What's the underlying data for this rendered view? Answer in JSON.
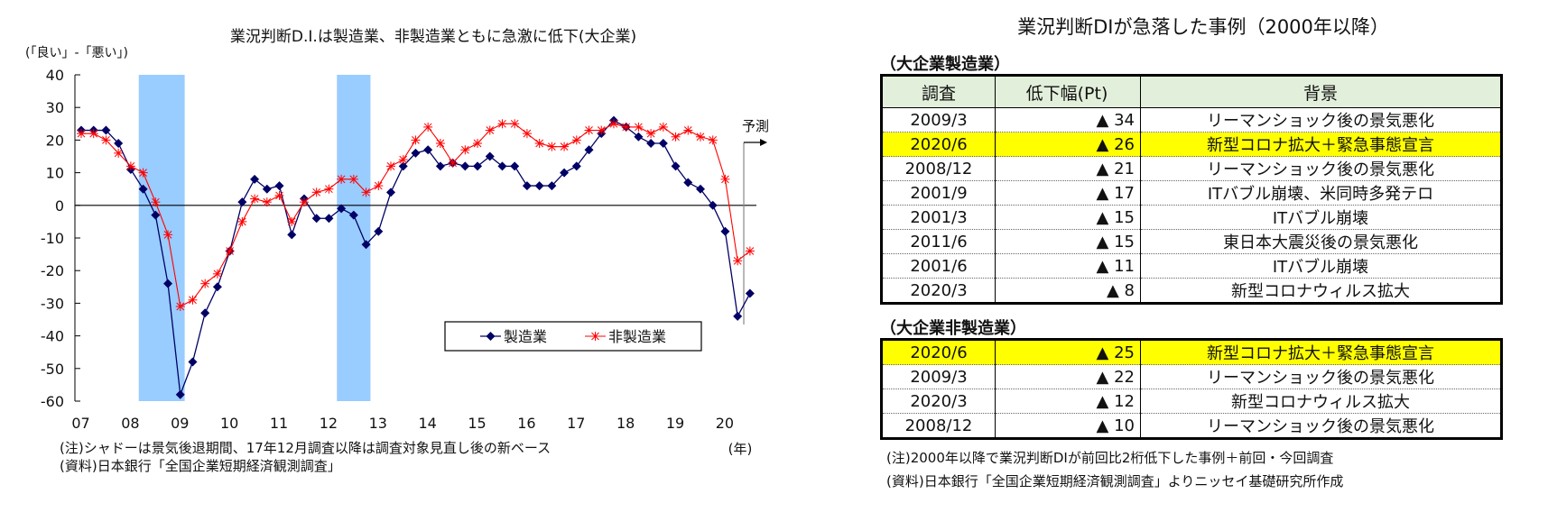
{
  "chart_data": {
    "type": "line",
    "title": "業況判断D.I.は製造業、非製造業ともに急激に低下(大企業)",
    "ylabel": "(「良い」-「悪い」)",
    "xlabel": "(年)",
    "ylim": [
      -60,
      40
    ],
    "yticks": [
      40,
      30,
      20,
      10,
      0,
      -10,
      -20,
      -30,
      -40,
      -50,
      -60
    ],
    "xtick_labels": [
      "07",
      "08",
      "09",
      "10",
      "11",
      "12",
      "13",
      "14",
      "15",
      "16",
      "17",
      "18",
      "19",
      "20"
    ],
    "x_start": "2007/3",
    "x_frequency": "quarterly",
    "forecast_label": "予測",
    "recession_shading": [
      {
        "from": "2008/2",
        "to": "2009/1"
      },
      {
        "from": "2012/2",
        "to": "2012/4"
      }
    ],
    "legend": {
      "position": "bottom-right",
      "entries": [
        "製造業",
        "非製造業"
      ]
    },
    "series": [
      {
        "name": "製造業",
        "color": "#000066",
        "marker": "diamond",
        "values": [
          23,
          23,
          23,
          19,
          11,
          5,
          -3,
          -24,
          -58,
          -48,
          -33,
          -25,
          -14,
          1,
          8,
          5,
          6,
          -9,
          2,
          -4,
          -4,
          -1,
          -3,
          -12,
          -8,
          4,
          12,
          16,
          17,
          12,
          13,
          12,
          12,
          15,
          12,
          12,
          6,
          6,
          6,
          10,
          12,
          17,
          22,
          26,
          24,
          21,
          19,
          19,
          12,
          7,
          5,
          0,
          -8,
          -34,
          -27
        ]
      },
      {
        "name": "非製造業",
        "color": "#ff0000",
        "marker": "asterisk",
        "values": [
          22,
          22,
          20,
          16,
          12,
          10,
          1,
          -9,
          -31,
          -29,
          -24,
          -21,
          -14,
          -5,
          2,
          1,
          3,
          -5,
          1,
          4,
          5,
          8,
          8,
          4,
          6,
          12,
          14,
          20,
          24,
          19,
          13,
          17,
          19,
          23,
          25,
          25,
          22,
          19,
          18,
          18,
          20,
          23,
          23,
          25,
          24,
          24,
          22,
          24,
          21,
          23,
          21,
          20,
          8,
          -17,
          -14
        ]
      }
    ]
  },
  "left_notes": {
    "note1": "(注)シャドーは景気後退期間、17年12月調査以降は調査対象見直し後の新ベース",
    "note2": "(資料)日本銀行「全国企業短期経済観測調査」"
  },
  "right": {
    "title": "業況判断DIが急落した事例（2000年以降）",
    "headers": [
      "調査",
      "低下幅(Pt)",
      "背景"
    ],
    "mfg": {
      "label": "（大企業製造業）",
      "rows": [
        {
          "survey": "2009/3",
          "drop": "▲ 34",
          "background": "リーマンショック後の景気悪化",
          "highlight": false
        },
        {
          "survey": "2020/6",
          "drop": "▲ 26",
          "background": "新型コロナ拡大＋緊急事態宣言",
          "highlight": true
        },
        {
          "survey": "2008/12",
          "drop": "▲ 21",
          "background": "リーマンショック後の景気悪化",
          "highlight": false
        },
        {
          "survey": "2001/9",
          "drop": "▲ 17",
          "background": "ITバブル崩壊、米同時多発テロ",
          "highlight": false
        },
        {
          "survey": "2001/3",
          "drop": "▲ 15",
          "background": "ITバブル崩壊",
          "highlight": false
        },
        {
          "survey": "2011/6",
          "drop": "▲ 15",
          "background": "東日本大震災後の景気悪化",
          "highlight": false
        },
        {
          "survey": "2001/6",
          "drop": "▲ 11",
          "background": "ITバブル崩壊",
          "highlight": false
        },
        {
          "survey": "2020/3",
          "drop": "▲ 8",
          "background": "新型コロナウィルス拡大",
          "highlight": false
        }
      ]
    },
    "nonmfg": {
      "label": "（大企業非製造業）",
      "rows": [
        {
          "survey": "2020/6",
          "drop": "▲ 25",
          "background": "新型コロナ拡大＋緊急事態宣言",
          "highlight": true
        },
        {
          "survey": "2009/3",
          "drop": "▲ 22",
          "background": "リーマンショック後の景気悪化",
          "highlight": false
        },
        {
          "survey": "2020/3",
          "drop": "▲ 12",
          "background": "新型コロナウィルス拡大",
          "highlight": false
        },
        {
          "survey": "2008/12",
          "drop": "▲ 10",
          "background": "リーマンショック後の景気悪化",
          "highlight": false
        }
      ]
    },
    "note1": "(注)2000年以降で業況判断DIが前回比2桁低下した事例＋前回・今回調査",
    "note2": "(資料)日本銀行「全国企業短期経済観測調査」よりニッセイ基礎研究所作成"
  },
  "colors": {
    "shade": "#99ccff",
    "highlight": "#ffff00",
    "header_bg": "#e2efda"
  }
}
